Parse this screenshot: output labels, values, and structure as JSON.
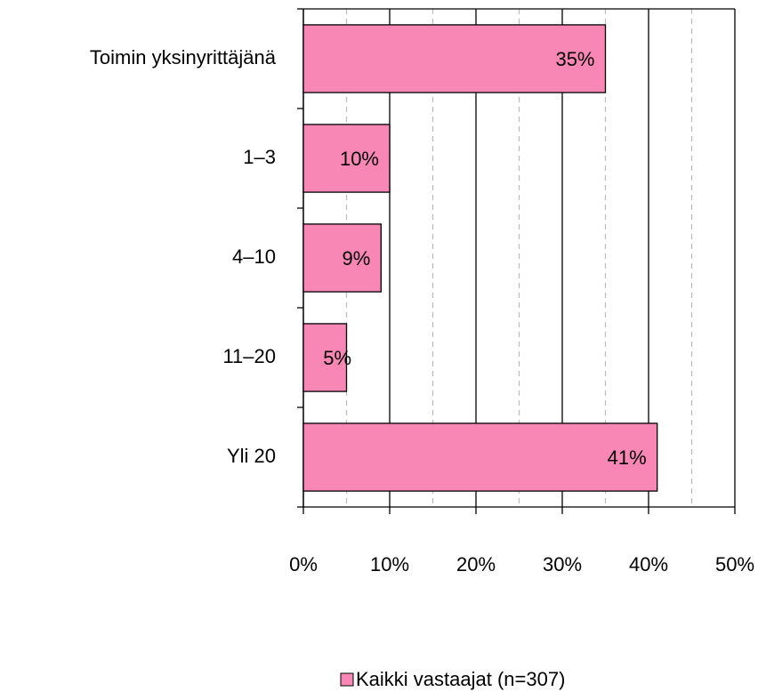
{
  "chart_data": {
    "type": "barh",
    "categories": [
      "Toimin yksinyrittäjänä",
      "1–3",
      "4–10",
      "11–20",
      "Yli 20"
    ],
    "series": [
      {
        "name": "Kaikki vastaajat (n=307)",
        "color": "#f987b5",
        "values": [
          35,
          10,
          9,
          5,
          41
        ],
        "value_labels": [
          "35%",
          "10%",
          "9%",
          "5%",
          "41%"
        ]
      }
    ],
    "xlim": [
      0,
      50
    ],
    "xticks": [
      {
        "value": 0,
        "label": "0%"
      },
      {
        "value": 10,
        "label": "10%"
      },
      {
        "value": 20,
        "label": "20%"
      },
      {
        "value": 30,
        "label": "30%"
      },
      {
        "value": 40,
        "label": "40%"
      },
      {
        "value": 50,
        "label": "50%"
      }
    ],
    "minor_xticks": [
      5,
      15,
      25,
      35,
      45
    ],
    "grid": true,
    "legend": "bottom"
  }
}
